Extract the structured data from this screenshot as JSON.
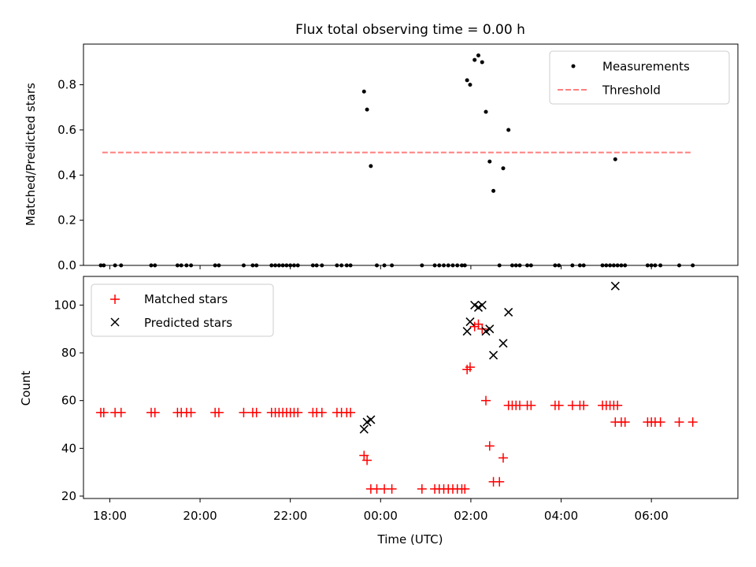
{
  "chart_data": [
    {
      "type": "scatter",
      "title": "Flux total observing time = 0.00 h",
      "xlabel": "",
      "ylabel": "Matched/Predicted stars",
      "xlim": [
        "17:25",
        "07:55"
      ],
      "ylim": [
        0,
        0.98
      ],
      "yticks": [
        "0.0",
        "0.2",
        "0.4",
        "0.6",
        "0.8"
      ],
      "legend": {
        "placement": "upper right",
        "entries": [
          "Measurements",
          "Threshold"
        ]
      },
      "threshold": {
        "name": "Threshold",
        "value": 0.5,
        "x_start": "17:50",
        "x_end": "06:55",
        "color": "#ff7f7f",
        "style": "dashed"
      },
      "series": [
        {
          "name": "Measurements",
          "color": "#000000",
          "marker": "dot",
          "points": [
            [
              "17:48",
              0
            ],
            [
              "17:52",
              0
            ],
            [
              "18:07",
              0
            ],
            [
              "18:15",
              0
            ],
            [
              "18:55",
              0
            ],
            [
              "19:00",
              0
            ],
            [
              "19:30",
              0
            ],
            [
              "19:35",
              0
            ],
            [
              "19:42",
              0
            ],
            [
              "19:48",
              0
            ],
            [
              "20:20",
              0
            ],
            [
              "20:25",
              0
            ],
            [
              "20:58",
              0
            ],
            [
              "21:10",
              0
            ],
            [
              "21:15",
              0
            ],
            [
              "21:35",
              0
            ],
            [
              "21:40",
              0
            ],
            [
              "21:45",
              0
            ],
            [
              "21:50",
              0
            ],
            [
              "21:55",
              0
            ],
            [
              "22:00",
              0
            ],
            [
              "22:05",
              0
            ],
            [
              "22:10",
              0
            ],
            [
              "22:30",
              0
            ],
            [
              "22:35",
              0
            ],
            [
              "22:42",
              0
            ],
            [
              "23:02",
              0
            ],
            [
              "23:08",
              0
            ],
            [
              "23:15",
              0
            ],
            [
              "23:20",
              0
            ],
            [
              "23:38",
              0.77
            ],
            [
              "23:42",
              0.69
            ],
            [
              "23:47",
              0.44
            ],
            [
              "23:55",
              0
            ],
            [
              "00:05",
              0
            ],
            [
              "00:15",
              0
            ],
            [
              "00:55",
              0
            ],
            [
              "01:12",
              0
            ],
            [
              "01:18",
              0
            ],
            [
              "01:24",
              0
            ],
            [
              "01:30",
              0
            ],
            [
              "01:36",
              0
            ],
            [
              "01:42",
              0
            ],
            [
              "01:48",
              0
            ],
            [
              "01:52",
              0
            ],
            [
              "01:55",
              0.82
            ],
            [
              "01:59",
              0.8
            ],
            [
              "02:05",
              0.91
            ],
            [
              "02:10",
              0.93
            ],
            [
              "02:15",
              0.9
            ],
            [
              "02:20",
              0.68
            ],
            [
              "02:25",
              0.46
            ],
            [
              "02:30",
              0.33
            ],
            [
              "02:38",
              0
            ],
            [
              "02:43",
              0.43
            ],
            [
              "02:50",
              0.6
            ],
            [
              "02:55",
              0
            ],
            [
              "03:00",
              0
            ],
            [
              "03:05",
              0
            ],
            [
              "03:15",
              0
            ],
            [
              "03:20",
              0
            ],
            [
              "03:52",
              0
            ],
            [
              "03:57",
              0
            ],
            [
              "04:15",
              0
            ],
            [
              "04:25",
              0
            ],
            [
              "04:30",
              0
            ],
            [
              "04:55",
              0
            ],
            [
              "05:00",
              0
            ],
            [
              "05:05",
              0
            ],
            [
              "05:10",
              0
            ],
            [
              "05:15",
              0
            ],
            [
              "05:12",
              0.47
            ],
            [
              "05:20",
              0
            ],
            [
              "05:25",
              0
            ],
            [
              "05:55",
              0
            ],
            [
              "06:00",
              0
            ],
            [
              "06:05",
              0
            ],
            [
              "06:12",
              0
            ],
            [
              "06:37",
              0
            ],
            [
              "06:55",
              0
            ]
          ]
        }
      ]
    },
    {
      "type": "scatter",
      "title": "",
      "xlabel": "Time (UTC)",
      "ylabel": "Count",
      "xlim": [
        "17:25",
        "07:55"
      ],
      "xticks": [
        "18:00",
        "20:00",
        "22:00",
        "00:00",
        "02:00",
        "04:00",
        "06:00"
      ],
      "ylim": [
        19,
        112
      ],
      "yticks": [
        "20",
        "40",
        "60",
        "80",
        "100"
      ],
      "legend": {
        "placement": "upper left",
        "entries": [
          "Matched stars",
          "Predicted stars"
        ]
      },
      "series": [
        {
          "name": "Matched stars",
          "color": "#ff0000",
          "marker": "plus",
          "points": [
            [
              "17:48",
              55
            ],
            [
              "17:52",
              55
            ],
            [
              "18:07",
              55
            ],
            [
              "18:15",
              55
            ],
            [
              "18:55",
              55
            ],
            [
              "19:00",
              55
            ],
            [
              "19:30",
              55
            ],
            [
              "19:35",
              55
            ],
            [
              "19:42",
              55
            ],
            [
              "19:48",
              55
            ],
            [
              "20:20",
              55
            ],
            [
              "20:25",
              55
            ],
            [
              "20:58",
              55
            ],
            [
              "21:10",
              55
            ],
            [
              "21:15",
              55
            ],
            [
              "21:35",
              55
            ],
            [
              "21:40",
              55
            ],
            [
              "21:45",
              55
            ],
            [
              "21:50",
              55
            ],
            [
              "21:55",
              55
            ],
            [
              "22:00",
              55
            ],
            [
              "22:05",
              55
            ],
            [
              "22:10",
              55
            ],
            [
              "22:30",
              55
            ],
            [
              "22:35",
              55
            ],
            [
              "22:42",
              55
            ],
            [
              "23:02",
              55
            ],
            [
              "23:08",
              55
            ],
            [
              "23:15",
              55
            ],
            [
              "23:20",
              55
            ],
            [
              "23:38",
              37
            ],
            [
              "23:42",
              35
            ],
            [
              "23:47",
              23
            ],
            [
              "23:55",
              23
            ],
            [
              "00:05",
              23
            ],
            [
              "00:15",
              23
            ],
            [
              "00:55",
              23
            ],
            [
              "01:12",
              23
            ],
            [
              "01:18",
              23
            ],
            [
              "01:24",
              23
            ],
            [
              "01:30",
              23
            ],
            [
              "01:36",
              23
            ],
            [
              "01:42",
              23
            ],
            [
              "01:48",
              23
            ],
            [
              "01:52",
              23
            ],
            [
              "01:55",
              73
            ],
            [
              "01:59",
              74
            ],
            [
              "02:05",
              91
            ],
            [
              "02:10",
              92
            ],
            [
              "02:15",
              90
            ],
            [
              "02:20",
              60
            ],
            [
              "02:25",
              41
            ],
            [
              "02:30",
              26
            ],
            [
              "02:38",
              26
            ],
            [
              "02:43",
              36
            ],
            [
              "02:50",
              58
            ],
            [
              "02:55",
              58
            ],
            [
              "03:00",
              58
            ],
            [
              "03:05",
              58
            ],
            [
              "03:15",
              58
            ],
            [
              "03:20",
              58
            ],
            [
              "03:52",
              58
            ],
            [
              "03:57",
              58
            ],
            [
              "04:15",
              58
            ],
            [
              "04:25",
              58
            ],
            [
              "04:30",
              58
            ],
            [
              "04:55",
              58
            ],
            [
              "05:00",
              58
            ],
            [
              "05:05",
              58
            ],
            [
              "05:10",
              58
            ],
            [
              "05:15",
              58
            ],
            [
              "05:12",
              51
            ],
            [
              "05:20",
              51
            ],
            [
              "05:25",
              51
            ],
            [
              "05:55",
              51
            ],
            [
              "06:00",
              51
            ],
            [
              "06:05",
              51
            ],
            [
              "06:12",
              51
            ],
            [
              "06:37",
              51
            ],
            [
              "06:55",
              51
            ]
          ]
        },
        {
          "name": "Predicted stars",
          "color": "#000000",
          "marker": "x",
          "points": [
            [
              "23:38",
              48
            ],
            [
              "23:42",
              51
            ],
            [
              "23:47",
              52
            ],
            [
              "01:55",
              89
            ],
            [
              "01:59",
              93
            ],
            [
              "02:05",
              100
            ],
            [
              "02:10",
              99
            ],
            [
              "02:15",
              100
            ],
            [
              "02:20",
              89
            ],
            [
              "02:25",
              90
            ],
            [
              "02:30",
              79
            ],
            [
              "02:43",
              84
            ],
            [
              "02:50",
              97
            ],
            [
              "05:12",
              108
            ]
          ]
        }
      ]
    }
  ]
}
